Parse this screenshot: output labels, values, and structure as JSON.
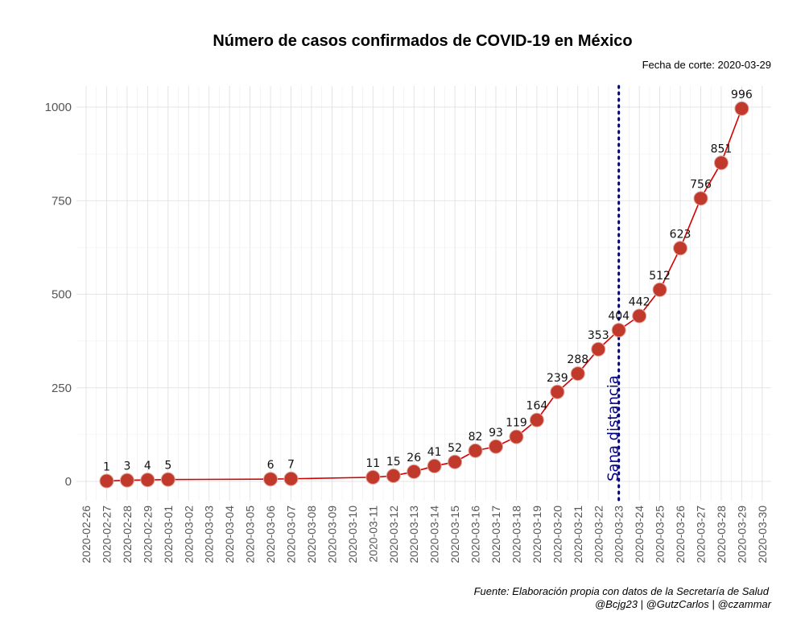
{
  "chart_data": {
    "type": "line",
    "title": "Número de casos confirmados de COVID-19 en México",
    "subtitle": "Fecha de corte: 2020-03-29",
    "xlabel": "",
    "ylabel": "",
    "x_ticks": [
      "2020-02-26",
      "2020-02-27",
      "2020-02-28",
      "2020-02-29",
      "2020-03-01",
      "2020-03-02",
      "2020-03-03",
      "2020-03-04",
      "2020-03-05",
      "2020-03-06",
      "2020-03-07",
      "2020-03-08",
      "2020-03-09",
      "2020-03-10",
      "2020-03-11",
      "2020-03-12",
      "2020-03-13",
      "2020-03-14",
      "2020-03-15",
      "2020-03-16",
      "2020-03-17",
      "2020-03-18",
      "2020-03-19",
      "2020-03-20",
      "2020-03-21",
      "2020-03-22",
      "2020-03-23",
      "2020-03-24",
      "2020-03-25",
      "2020-03-26",
      "2020-03-27",
      "2020-03-28",
      "2020-03-29",
      "2020-03-30"
    ],
    "y_ticks": [
      0,
      250,
      500,
      750,
      1000
    ],
    "ylim": [
      -50,
      1055
    ],
    "grid": true,
    "points": [
      {
        "x": "2020-02-27",
        "y": 1
      },
      {
        "x": "2020-02-28",
        "y": 3
      },
      {
        "x": "2020-02-29",
        "y": 4
      },
      {
        "x": "2020-03-01",
        "y": 5
      },
      {
        "x": "2020-03-06",
        "y": 6
      },
      {
        "x": "2020-03-07",
        "y": 7
      },
      {
        "x": "2020-03-11",
        "y": 11
      },
      {
        "x": "2020-03-12",
        "y": 15
      },
      {
        "x": "2020-03-13",
        "y": 26
      },
      {
        "x": "2020-03-14",
        "y": 41
      },
      {
        "x": "2020-03-15",
        "y": 52
      },
      {
        "x": "2020-03-16",
        "y": 82
      },
      {
        "x": "2020-03-17",
        "y": 93
      },
      {
        "x": "2020-03-18",
        "y": 119
      },
      {
        "x": "2020-03-19",
        "y": 164
      },
      {
        "x": "2020-03-20",
        "y": 239
      },
      {
        "x": "2020-03-21",
        "y": 288
      },
      {
        "x": "2020-03-22",
        "y": 353
      },
      {
        "x": "2020-03-23",
        "y": 404
      },
      {
        "x": "2020-03-24",
        "y": 442
      },
      {
        "x": "2020-03-25",
        "y": 512
      },
      {
        "x": "2020-03-26",
        "y": 623
      },
      {
        "x": "2020-03-27",
        "y": 756
      },
      {
        "x": "2020-03-28",
        "y": 851
      },
      {
        "x": "2020-03-29",
        "y": 996
      }
    ],
    "reference_line": {
      "x": "2020-03-23",
      "label": "Sana distancia",
      "color": "#00007f",
      "style": "dotted"
    },
    "caption": [
      "Fuente: Elaboración propia con datos de la Secretaría de Salud",
      "@Bcjg23 | @GutzCarlos | @czammar"
    ],
    "colors": {
      "line": "#d40000",
      "point": "#c0392b",
      "point_stroke": "#e0a8a0",
      "grid": "#dddddd"
    }
  }
}
